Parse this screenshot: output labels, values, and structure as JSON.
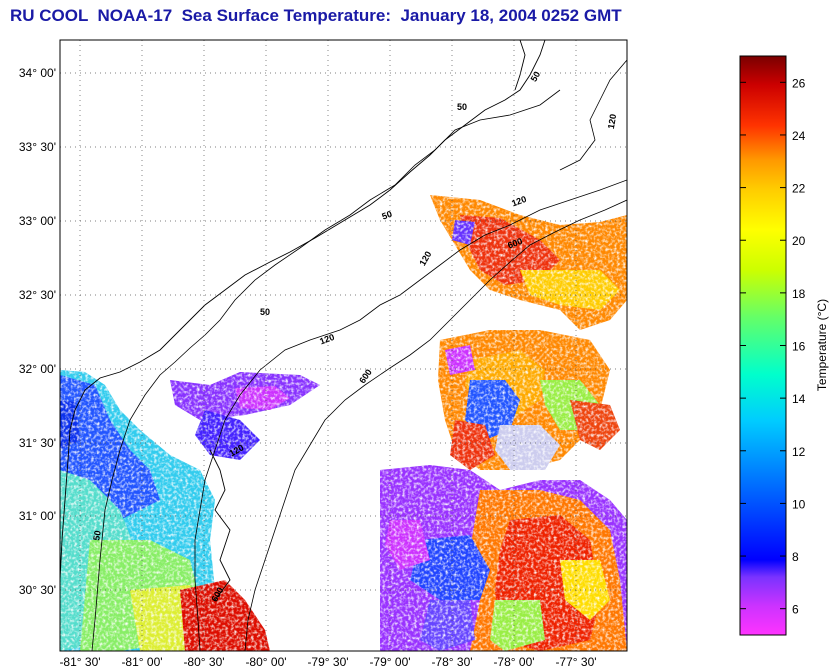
{
  "title": "RU COOL  NOAA-17  Sea Surface Temperature:  January 18, 2004 0252 GMT",
  "map": {
    "lat_labels": [
      "34° 00'",
      "33° 30'",
      "33° 00'",
      "32° 30'",
      "32° 00'",
      "31° 30'",
      "31° 00'",
      "30° 30'"
    ],
    "lon_labels": [
      "-81° 30'",
      "-81° 00'",
      "-80° 30'",
      "-80° 00'",
      "-79° 30'",
      "-79° 00'",
      "-78° 30'",
      "-78° 00'",
      "-77° 30'"
    ],
    "contour_labels": [
      "50",
      "50",
      "50",
      "120",
      "120",
      "120",
      "120",
      "120",
      "600",
      "600",
      "600",
      "50",
      "50"
    ],
    "colors": {
      "land": "#ffffff",
      "frame": "#000000",
      "title": "#1a1aa6"
    }
  },
  "colorbar": {
    "label": "Temperature (°C)",
    "ticks": [
      "26",
      "24",
      "22",
      "20",
      "18",
      "16",
      "14",
      "12",
      "10",
      "8",
      "6"
    ],
    "min": 5,
    "max": 27
  }
}
